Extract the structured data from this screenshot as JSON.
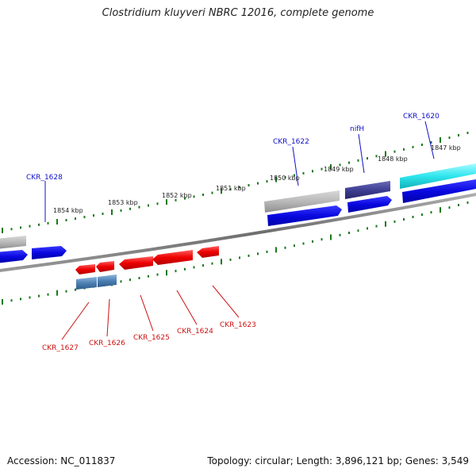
{
  "title": "Clostridium kluyveri NBRC 12016, complete genome",
  "footer": {
    "accession": "Accession: NC_011837",
    "summary": "Topology: circular; Length: 3,896,121 bp; Genes: 3,549"
  },
  "colors": {
    "backbone": "#7a7a7a",
    "tick": "#1a7a1a",
    "forward_label": "#1010cc",
    "reverse_label": "#cc1010",
    "gene_blue": "#0a0ad8",
    "gene_gray": "#b5b5b5",
    "gene_navy": "#3a3a8c",
    "gene_cyan": "#29e0e8",
    "gene_red": "#ee0000",
    "gene_steel": "#4d7fb3"
  },
  "scale_labels": [
    "1854 kbp",
    "1853 kbp",
    "1852 kbp",
    "1851 kbp",
    "1850 kbp",
    "1849 kbp",
    "1848 kbp",
    "1847 kbp"
  ],
  "forward_gene_labels": [
    "CKR_1628",
    "CKR_1622",
    "nifH",
    "CKR_1620"
  ],
  "reverse_gene_labels": [
    "CKR_1627",
    "CKR_1626",
    "CKR_1625",
    "CKR_1624",
    "CKR_1623"
  ]
}
